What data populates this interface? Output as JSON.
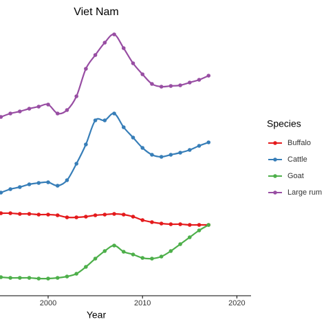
{
  "chart_data": {
    "type": "line",
    "title": "Viet Nam",
    "x_label": "Year",
    "x": [
      1995,
      1996,
      1997,
      1998,
      1999,
      2000,
      2001,
      2002,
      2003,
      2004,
      2005,
      2006,
      2007,
      2008,
      2009,
      2010,
      2011,
      2012,
      2013,
      2014,
      2015,
      2016,
      2017
    ],
    "series": [
      {
        "name": "Buffalo",
        "color": "#e41a1c",
        "values": [
          30,
          30,
          29.75,
          29.75,
          29.5,
          29.5,
          29.25,
          28.5,
          28.5,
          28.75,
          29.25,
          29.5,
          29.75,
          29.5,
          28.75,
          27.5,
          26.75,
          26.25,
          26,
          26,
          25.75,
          25.75,
          25.75
        ]
      },
      {
        "name": "Cattle",
        "color": "#377eb8",
        "values": [
          37.5,
          38.75,
          39.5,
          40.5,
          41,
          41.25,
          40,
          42,
          48,
          55,
          63.75,
          63.75,
          66.25,
          61.25,
          57.5,
          53.75,
          51.25,
          50.5,
          51.25,
          52,
          53,
          54.5,
          55.75
        ]
      },
      {
        "name": "Goat",
        "color": "#4daf4a",
        "values": [
          6.75,
          6.5,
          6.5,
          6.5,
          6.25,
          6.25,
          6.5,
          7,
          8,
          10.5,
          13.5,
          16.25,
          18.25,
          16,
          15,
          13.75,
          13.5,
          14.25,
          16.25,
          18.75,
          21.25,
          23.75,
          25.75
        ]
      },
      {
        "name": "Large rum",
        "color": "#984ea3",
        "values": [
          65,
          66.25,
          67,
          68,
          68.75,
          69.5,
          66.25,
          67.5,
          72.5,
          82.5,
          87.5,
          92,
          95,
          90,
          84.5,
          80.5,
          77,
          76,
          76.25,
          76.5,
          77.5,
          78.5,
          80
        ]
      }
    ],
    "legend_title": "Species",
    "legend": "right",
    "xlim": [
      1994.9,
      2021.5
    ],
    "xticks": [
      2000,
      2010,
      2020
    ],
    "ylim": [
      0,
      100
    ]
  }
}
